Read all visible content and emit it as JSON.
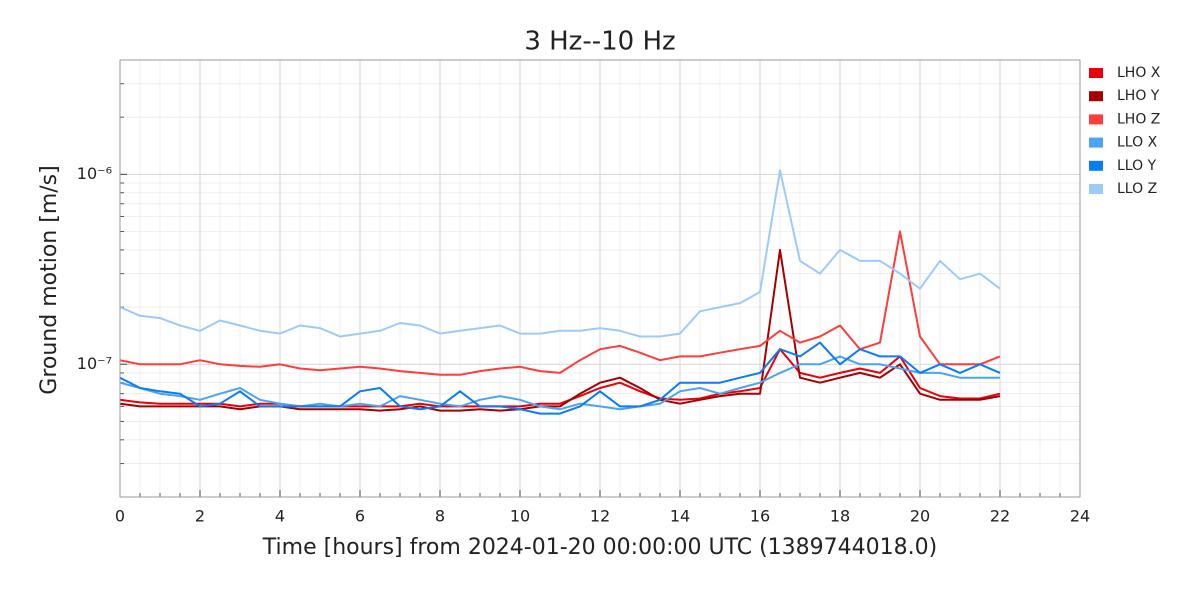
{
  "chart_data": {
    "type": "line",
    "title": "3 Hz--10 Hz",
    "xlabel": "Time [hours] from 2024-01-20 00:00:00 UTC (1389744018.0)",
    "ylabel": "Ground motion [m/s]",
    "xlim": [
      0,
      24
    ],
    "xticks": [
      0,
      2,
      4,
      6,
      8,
      10,
      12,
      14,
      16,
      18,
      20,
      22,
      24
    ],
    "xminorticks": [
      0.5,
      1,
      1.5,
      2.5,
      3,
      3.5,
      4.5,
      5,
      5.5,
      6.5,
      7,
      7.5,
      8.5,
      9,
      9.5,
      10.5,
      11,
      11.5,
      12.5,
      13,
      13.5,
      14.5,
      15,
      15.5,
      16.5,
      17,
      17.5,
      18.5,
      19,
      19.5,
      20.5,
      21,
      21.5,
      22.5,
      23,
      23.5
    ],
    "ylim": [
      2e-08,
      4e-06
    ],
    "ylog": true,
    "yticks": [
      {
        "value": 1e-07,
        "label": "10⁻⁷"
      },
      {
        "value": 1e-06,
        "label": "10⁻⁶"
      }
    ],
    "yminorticks": [
      3e-08,
      4e-08,
      5e-08,
      6e-08,
      7e-08,
      8e-08,
      9e-08,
      2e-07,
      3e-07,
      4e-07,
      5e-07,
      6e-07,
      7e-07,
      8e-07,
      9e-07,
      2e-06,
      3e-06
    ],
    "grid": true,
    "legend": "outside upper right",
    "x": [
      0,
      0.5,
      1,
      1.5,
      2,
      2.5,
      3,
      3.5,
      4,
      4.5,
      5,
      5.5,
      6,
      6.5,
      7,
      7.5,
      8,
      8.5,
      9,
      9.5,
      10,
      10.5,
      11,
      11.5,
      12,
      12.5,
      13,
      13.5,
      14,
      14.5,
      15,
      15.5,
      16,
      16.5,
      17,
      17.5,
      18,
      18.5,
      19,
      19.5,
      20,
      20.5,
      21,
      21.5,
      22
    ],
    "series": [
      {
        "name": "LHO X",
        "color": "#e8000b",
        "values": [
          6.5e-08,
          6.3e-08,
          6.2e-08,
          6.2e-08,
          6.2e-08,
          6.2e-08,
          6e-08,
          6.2e-08,
          6.2e-08,
          6e-08,
          6e-08,
          6e-08,
          6e-08,
          6e-08,
          6e-08,
          6.2e-08,
          6e-08,
          6e-08,
          6e-08,
          6e-08,
          6e-08,
          6.2e-08,
          6.2e-08,
          6.8e-08,
          7.5e-08,
          8e-08,
          7.2e-08,
          6.6e-08,
          6.5e-08,
          6.6e-08,
          7e-08,
          7.2e-08,
          7.5e-08,
          1.2e-07,
          9e-08,
          8.5e-08,
          9e-08,
          9.5e-08,
          9e-08,
          1.1e-07,
          7.5e-08,
          6.8e-08,
          6.6e-08,
          6.6e-08,
          7e-08
        ]
      },
      {
        "name": "LHO Y",
        "color": "#a50000",
        "values": [
          6.2e-08,
          6e-08,
          6e-08,
          6e-08,
          6e-08,
          6e-08,
          5.8e-08,
          6e-08,
          6e-08,
          5.8e-08,
          5.8e-08,
          5.8e-08,
          5.8e-08,
          5.7e-08,
          5.8e-08,
          6e-08,
          5.7e-08,
          5.7e-08,
          5.8e-08,
          5.7e-08,
          5.8e-08,
          6e-08,
          6e-08,
          7e-08,
          8e-08,
          8.5e-08,
          7.5e-08,
          6.5e-08,
          6.2e-08,
          6.5e-08,
          6.8e-08,
          7e-08,
          7e-08,
          4e-07,
          8.5e-08,
          8e-08,
          8.5e-08,
          9e-08,
          8.5e-08,
          1e-07,
          7e-08,
          6.5e-08,
          6.5e-08,
          6.5e-08,
          6.8e-08
        ]
      },
      {
        "name": "LHO Z",
        "color": "#ff3c3c",
        "values": [
          1.05e-07,
          1e-07,
          1e-07,
          1e-07,
          1.05e-07,
          1e-07,
          9.8e-08,
          9.7e-08,
          1e-07,
          9.5e-08,
          9.3e-08,
          9.5e-08,
          9.7e-08,
          9.5e-08,
          9.2e-08,
          9e-08,
          8.8e-08,
          8.8e-08,
          9.2e-08,
          9.5e-08,
          9.7e-08,
          9.2e-08,
          9e-08,
          1.05e-07,
          1.2e-07,
          1.25e-07,
          1.15e-07,
          1.05e-07,
          1.1e-07,
          1.1e-07,
          1.15e-07,
          1.2e-07,
          1.25e-07,
          1.5e-07,
          1.3e-07,
          1.4e-07,
          1.6e-07,
          1.2e-07,
          1.3e-07,
          5e-07,
          1.4e-07,
          1e-07,
          1e-07,
          1e-07,
          1.1e-07
        ]
      },
      {
        "name": "LLO X",
        "color": "#4ba3f5",
        "values": [
          8e-08,
          7.5e-08,
          7e-08,
          6.8e-08,
          6.5e-08,
          7e-08,
          7.5e-08,
          6.5e-08,
          6.2e-08,
          6e-08,
          6.2e-08,
          6e-08,
          6.2e-08,
          6e-08,
          6.8e-08,
          6.5e-08,
          6.2e-08,
          6e-08,
          6.5e-08,
          6.8e-08,
          6.5e-08,
          6e-08,
          5.8e-08,
          6.2e-08,
          6e-08,
          5.8e-08,
          6e-08,
          6.2e-08,
          7.2e-08,
          7.5e-08,
          7e-08,
          7.5e-08,
          8e-08,
          9e-08,
          1e-07,
          1e-07,
          1.1e-07,
          1e-07,
          1e-07,
          9.5e-08,
          9e-08,
          9e-08,
          8.5e-08,
          8.5e-08,
          8.5e-08
        ]
      },
      {
        "name": "LLO Y",
        "color": "#0a7cf5",
        "values": [
          8.5e-08,
          7.5e-08,
          7.2e-08,
          7e-08,
          6e-08,
          6.2e-08,
          7.2e-08,
          6e-08,
          6e-08,
          6e-08,
          6e-08,
          6e-08,
          7.2e-08,
          7.5e-08,
          6e-08,
          5.8e-08,
          6e-08,
          7.2e-08,
          6e-08,
          6e-08,
          5.8e-08,
          5.5e-08,
          5.5e-08,
          6e-08,
          7.2e-08,
          6e-08,
          6e-08,
          6.5e-08,
          8e-08,
          8e-08,
          8e-08,
          8.5e-08,
          9e-08,
          1.2e-07,
          1.1e-07,
          1.3e-07,
          1e-07,
          1.2e-07,
          1.1e-07,
          1.1e-07,
          9e-08,
          1e-07,
          9e-08,
          1e-07,
          9e-08
        ]
      },
      {
        "name": "LLO Z",
        "color": "#9ccbfa",
        "values": [
          2e-07,
          1.8e-07,
          1.75e-07,
          1.6e-07,
          1.5e-07,
          1.7e-07,
          1.6e-07,
          1.5e-07,
          1.45e-07,
          1.6e-07,
          1.55e-07,
          1.4e-07,
          1.45e-07,
          1.5e-07,
          1.65e-07,
          1.6e-07,
          1.45e-07,
          1.5e-07,
          1.55e-07,
          1.6e-07,
          1.45e-07,
          1.45e-07,
          1.5e-07,
          1.5e-07,
          1.55e-07,
          1.5e-07,
          1.4e-07,
          1.4e-07,
          1.45e-07,
          1.9e-07,
          2e-07,
          2.1e-07,
          2.4e-07,
          1.05e-06,
          3.5e-07,
          3e-07,
          4e-07,
          3.5e-07,
          3.5e-07,
          3e-07,
          2.5e-07,
          3.5e-07,
          2.8e-07,
          3e-07,
          2.5e-07
        ]
      }
    ]
  }
}
